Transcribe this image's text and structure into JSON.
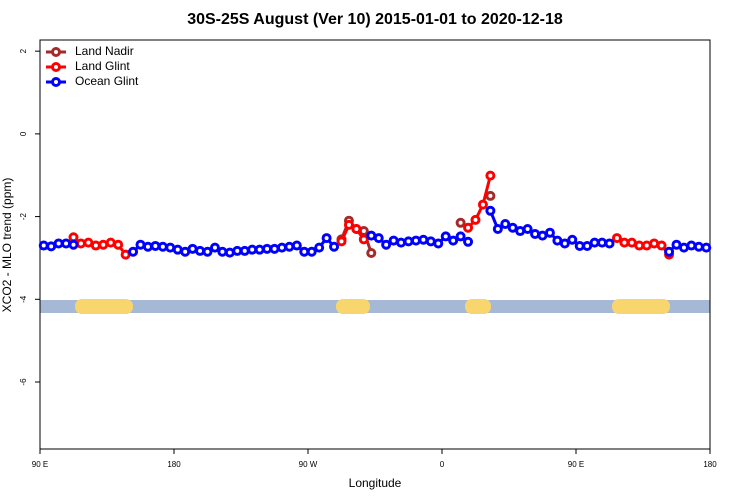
{
  "chart_data": {
    "type": "line",
    "title": "30S-25S August (Ver 10)   2015-01-01 to 2020-12-18",
    "xlabel": "Longitude",
    "ylabel": "XCO2 - MLO trend (ppm)",
    "xlim": [
      90,
      540
    ],
    "ylim": [
      -7.62,
      2.27
    ],
    "xticks": [
      {
        "value": 90,
        "label": "90 E"
      },
      180,
      {
        "value": 270,
        "label": "90 W"
      },
      {
        "value": 360,
        "label": "0"
      },
      {
        "value": 450,
        "label": "90 E"
      },
      {
        "value": 540,
        "label": "180"
      }
    ],
    "yticks": [
      2,
      0,
      -2,
      -4,
      -6
    ],
    "legend": "top-left",
    "x": [
      92.5,
      97.5,
      102.5,
      107.5,
      112.5,
      117.5,
      122.5,
      127.5,
      132.5,
      137.5,
      142.5,
      147.5,
      152.5,
      157.5,
      162.5,
      167.5,
      172.5,
      177.5,
      182.5,
      187.5,
      192.5,
      197.5,
      202.5,
      207.5,
      212.5,
      217.5,
      222.5,
      227.5,
      232.5,
      237.5,
      242.5,
      247.5,
      252.5,
      257.5,
      262.5,
      267.5,
      272.5,
      277.5,
      282.5,
      287.5,
      292.5,
      297.5,
      302.5,
      307.5,
      312.5,
      317.5,
      322.5,
      327.5,
      332.5,
      337.5,
      342.5,
      347.5,
      352.5,
      357.5,
      362.5,
      367.5,
      372.5,
      377.5,
      382.5,
      387.5,
      392.5,
      397.5,
      402.5,
      407.5,
      412.5,
      417.5,
      422.5,
      427.5,
      432.5,
      437.5,
      442.5,
      447.5,
      452.5,
      457.5,
      462.5,
      467.5,
      472.5,
      477.5,
      482.5,
      487.5,
      492.5,
      497.5,
      502.5,
      507.5,
      512.5,
      517.5,
      522.5,
      527.5,
      532.5,
      537.5
    ],
    "series": [
      {
        "name": "Land Nadir",
        "color": "#a52a2a",
        "values": [
          null,
          null,
          null,
          null,
          null,
          null,
          null,
          null,
          null,
          null,
          null,
          null,
          null,
          null,
          null,
          null,
          null,
          null,
          null,
          null,
          null,
          null,
          null,
          null,
          null,
          null,
          null,
          null,
          null,
          null,
          null,
          null,
          null,
          null,
          null,
          null,
          null,
          null,
          null,
          null,
          -2.55,
          -2.1,
          -2.3,
          -2.35,
          -2.88,
          null,
          null,
          null,
          null,
          null,
          null,
          null,
          null,
          null,
          null,
          null,
          -2.15,
          null,
          null,
          null,
          -1.5,
          null,
          null,
          null,
          null,
          null,
          null,
          null,
          null,
          null,
          null,
          null,
          null,
          null,
          null,
          null,
          null,
          null,
          null,
          null,
          null,
          null,
          null,
          null,
          null,
          null,
          null,
          null,
          null,
          null
        ]
      },
      {
        "name": "Land Glint",
        "color": "#ff0000",
        "values": [
          null,
          null,
          null,
          null,
          -2.5,
          -2.65,
          -2.63,
          -2.7,
          -2.68,
          -2.63,
          -2.68,
          -2.92,
          null,
          null,
          null,
          null,
          null,
          null,
          null,
          null,
          null,
          null,
          null,
          null,
          null,
          null,
          null,
          null,
          null,
          null,
          null,
          null,
          null,
          null,
          null,
          null,
          null,
          null,
          null,
          null,
          -2.6,
          -2.2,
          -2.3,
          -2.55,
          null,
          null,
          null,
          null,
          null,
          null,
          null,
          null,
          null,
          null,
          null,
          null,
          null,
          -2.27,
          -2.08,
          -1.71,
          -1.01,
          null,
          null,
          null,
          null,
          null,
          null,
          null,
          null,
          null,
          null,
          null,
          null,
          null,
          null,
          null,
          null,
          -2.52,
          -2.63,
          -2.63,
          -2.7,
          -2.7,
          -2.65,
          -2.7,
          -2.92,
          null,
          null,
          null,
          null,
          null
        ]
      },
      {
        "name": "Ocean Glint",
        "color": "#0000ff",
        "values": [
          -2.7,
          -2.72,
          -2.65,
          -2.65,
          -2.68,
          null,
          null,
          null,
          null,
          null,
          null,
          null,
          -2.85,
          -2.68,
          -2.73,
          -2.71,
          -2.73,
          -2.75,
          -2.8,
          -2.85,
          -2.78,
          -2.83,
          -2.85,
          -2.75,
          -2.85,
          -2.87,
          -2.83,
          -2.83,
          -2.8,
          -2.8,
          -2.78,
          -2.78,
          -2.75,
          -2.73,
          -2.7,
          -2.85,
          -2.85,
          -2.75,
          -2.52,
          -2.73,
          null,
          null,
          null,
          null,
          -2.46,
          -2.52,
          -2.68,
          -2.58,
          -2.63,
          -2.6,
          -2.58,
          -2.56,
          -2.6,
          -2.65,
          -2.48,
          -2.58,
          -2.48,
          -2.61,
          null,
          null,
          -1.86,
          -2.3,
          -2.18,
          -2.27,
          -2.35,
          -2.3,
          -2.42,
          -2.46,
          -2.39,
          -2.58,
          -2.65,
          -2.56,
          -2.71,
          -2.71,
          -2.63,
          -2.63,
          -2.65,
          null,
          null,
          null,
          null,
          null,
          null,
          null,
          -2.85,
          -2.68,
          -2.75,
          -2.7,
          -2.73,
          -2.75
        ]
      }
    ]
  }
}
